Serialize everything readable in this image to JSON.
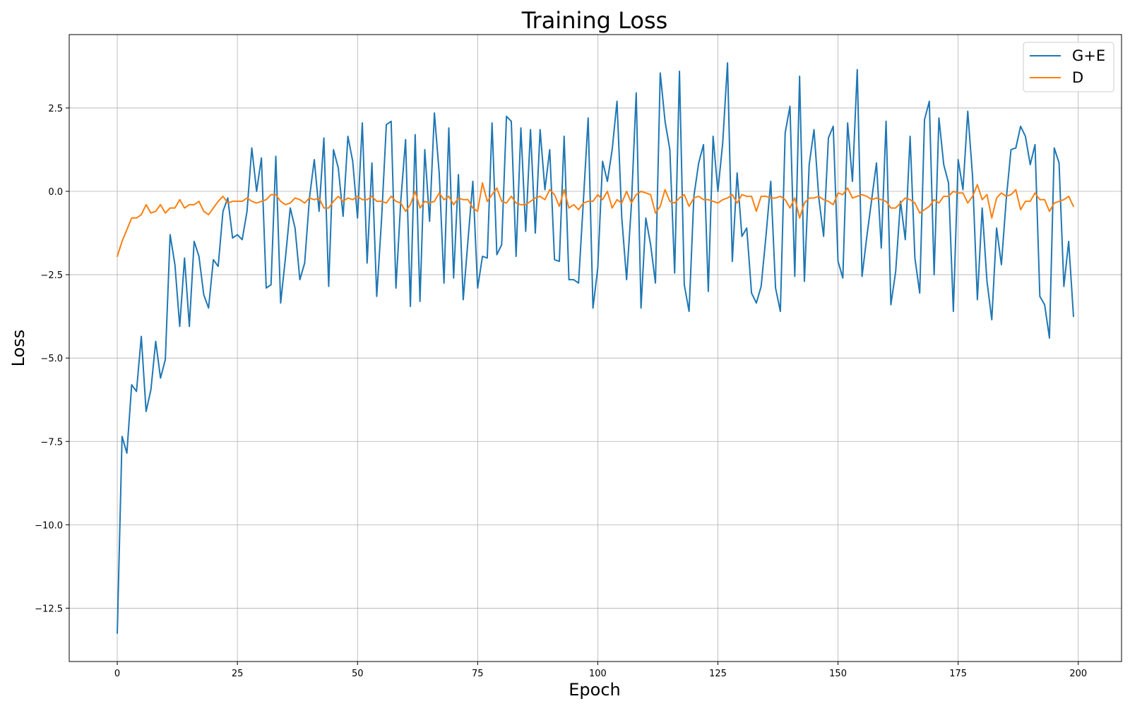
{
  "chart_data": {
    "type": "line",
    "title": "Training Loss",
    "xlabel": "Epoch",
    "ylabel": "Loss",
    "xlim": [
      -10,
      209
    ],
    "ylim": [
      -14.1,
      4.7
    ],
    "xticks": [
      0,
      25,
      50,
      75,
      100,
      125,
      150,
      175,
      200
    ],
    "yticks": [
      -12.5,
      -10.0,
      -7.5,
      -5.0,
      -2.5,
      0.0,
      2.5
    ],
    "xtick_labels": [
      "0",
      "25",
      "50",
      "75",
      "100",
      "125",
      "150",
      "175",
      "200"
    ],
    "ytick_labels": [
      "−12.5",
      "−10.0",
      "−7.5",
      "−5.0",
      "−2.5",
      "0.0",
      "2.5"
    ],
    "grid": true,
    "legend_position": "top-right",
    "series": [
      {
        "name": "G+E",
        "color": "#1f77b4",
        "values": [
          -13.25,
          -7.35,
          -7.85,
          -5.8,
          -6.0,
          -4.35,
          -6.6,
          -5.95,
          -4.5,
          -5.6,
          -5.05,
          -1.3,
          -2.2,
          -4.05,
          -2.0,
          -4.05,
          -1.5,
          -1.95,
          -3.1,
          -3.5,
          -2.05,
          -2.25,
          -0.6,
          -0.2,
          -1.4,
          -1.3,
          -1.45,
          -0.6,
          1.3,
          0.0,
          1.0,
          -2.9,
          -2.8,
          1.05,
          -3.35,
          -2.0,
          -0.5,
          -1.1,
          -2.65,
          -2.15,
          -0.2,
          0.95,
          -0.6,
          1.6,
          -2.85,
          1.25,
          0.7,
          -0.75,
          1.65,
          0.9,
          -0.8,
          2.05,
          -2.15,
          0.85,
          -3.15,
          -0.85,
          2.0,
          2.1,
          -2.9,
          -0.3,
          1.55,
          -3.45,
          1.7,
          -3.3,
          1.25,
          -0.9,
          2.35,
          0.55,
          -2.75,
          1.9,
          -2.6,
          0.5,
          -3.25,
          -1.45,
          0.3,
          -2.9,
          -1.95,
          -2.0,
          2.05,
          -1.9,
          -1.6,
          2.25,
          2.1,
          -1.95,
          1.9,
          -1.2,
          1.85,
          -1.25,
          1.85,
          0.05,
          1.25,
          -2.05,
          -2.1,
          1.65,
          -2.65,
          -2.65,
          -2.75,
          -0.3,
          2.2,
          -3.5,
          -2.3,
          0.9,
          0.3,
          1.25,
          2.7,
          -0.8,
          -2.65,
          -0.4,
          2.95,
          -3.5,
          -0.8,
          -1.6,
          -2.75,
          3.55,
          2.1,
          1.25,
          -2.45,
          3.6,
          -2.8,
          -3.6,
          -0.15,
          0.85,
          1.4,
          -3.0,
          1.65,
          0.0,
          1.45,
          3.85,
          -2.1,
          0.55,
          -1.35,
          -1.1,
          -3.05,
          -3.35,
          -2.85,
          -1.35,
          0.3,
          -2.9,
          -3.6,
          1.75,
          2.55,
          -2.55,
          3.45,
          -2.7,
          0.8,
          1.85,
          -0.2,
          -1.35,
          1.6,
          1.95,
          -2.1,
          -2.6,
          2.05,
          0.3,
          3.65,
          -2.55,
          -1.35,
          -0.25,
          0.85,
          -1.7,
          2.1,
          -3.4,
          -2.4,
          -0.3,
          -1.45,
          1.65,
          -2.0,
          -3.05,
          2.15,
          2.7,
          -2.5,
          2.2,
          0.8,
          0.25,
          -3.6,
          0.95,
          0.05,
          2.4,
          0.45,
          -3.25,
          -0.5,
          -2.7,
          -3.85,
          -1.1,
          -2.2,
          -0.25,
          1.25,
          1.3,
          1.95,
          1.65,
          0.8,
          1.4,
          -3.15,
          -3.4,
          -4.4,
          1.3,
          0.85,
          -2.85,
          -1.5,
          -3.75
        ]
      },
      {
        "name": "D",
        "color": "#ff7f0e",
        "values": [
          -1.95,
          -1.5,
          -1.15,
          -0.8,
          -0.8,
          -0.7,
          -0.4,
          -0.65,
          -0.6,
          -0.4,
          -0.65,
          -0.5,
          -0.5,
          -0.25,
          -0.5,
          -0.4,
          -0.4,
          -0.3,
          -0.6,
          -0.7,
          -0.5,
          -0.3,
          -0.15,
          -0.35,
          -0.3,
          -0.3,
          -0.3,
          -0.2,
          -0.3,
          -0.35,
          -0.3,
          -0.25,
          -0.1,
          -0.1,
          -0.3,
          -0.4,
          -0.35,
          -0.2,
          -0.25,
          -0.35,
          -0.2,
          -0.25,
          -0.2,
          -0.5,
          -0.5,
          -0.3,
          -0.15,
          -0.3,
          -0.2,
          -0.25,
          -0.15,
          -0.25,
          -0.25,
          -0.15,
          -0.3,
          -0.3,
          -0.35,
          -0.15,
          -0.3,
          -0.35,
          -0.6,
          -0.4,
          0.0,
          -0.5,
          -0.3,
          -0.35,
          -0.3,
          -0.05,
          -0.25,
          -0.15,
          -0.4,
          -0.2,
          -0.25,
          -0.25,
          -0.5,
          -0.6,
          0.25,
          -0.3,
          -0.1,
          0.1,
          -0.3,
          -0.35,
          -0.15,
          -0.35,
          -0.4,
          -0.4,
          -0.3,
          -0.2,
          -0.15,
          -0.25,
          0.05,
          -0.1,
          -0.45,
          0.05,
          -0.5,
          -0.4,
          -0.55,
          -0.35,
          -0.3,
          -0.3,
          -0.1,
          -0.25,
          0.0,
          -0.5,
          -0.25,
          -0.35,
          0.0,
          -0.35,
          -0.1,
          0.0,
          -0.05,
          -0.1,
          -0.65,
          -0.45,
          0.05,
          -0.3,
          -0.35,
          -0.2,
          -0.1,
          -0.45,
          -0.2,
          -0.15,
          -0.25,
          -0.25,
          -0.3,
          -0.35,
          -0.25,
          -0.2,
          -0.1,
          -0.35,
          -0.1,
          -0.15,
          -0.15,
          -0.6,
          -0.15,
          -0.15,
          -0.2,
          -0.2,
          -0.15,
          -0.25,
          -0.5,
          -0.2,
          -0.8,
          -0.35,
          -0.2,
          -0.2,
          -0.15,
          -0.25,
          -0.3,
          -0.4,
          -0.05,
          -0.1,
          0.1,
          -0.2,
          -0.15,
          -0.1,
          -0.15,
          -0.25,
          -0.2,
          -0.25,
          -0.3,
          -0.5,
          -0.5,
          -0.35,
          -0.2,
          -0.25,
          -0.35,
          -0.65,
          -0.55,
          -0.45,
          -0.25,
          -0.35,
          -0.15,
          -0.15,
          0.0,
          -0.05,
          -0.05,
          -0.35,
          -0.15,
          0.2,
          -0.25,
          -0.1,
          -0.8,
          -0.2,
          -0.05,
          -0.15,
          -0.1,
          0.05,
          -0.55,
          -0.3,
          -0.3,
          -0.05,
          -0.25,
          -0.25,
          -0.6,
          -0.35,
          -0.3,
          -0.25,
          -0.15,
          -0.45
        ]
      }
    ]
  }
}
